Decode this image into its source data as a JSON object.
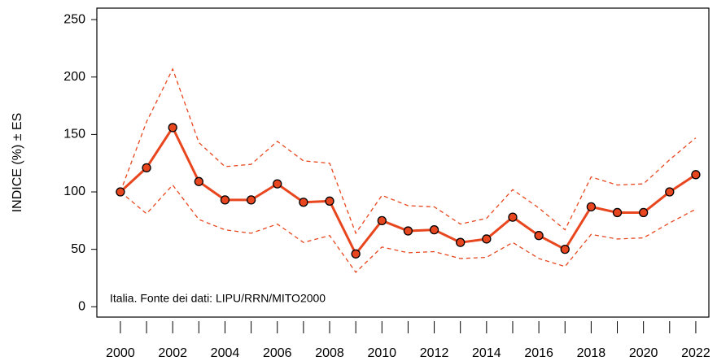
{
  "chart_data": {
    "type": "line",
    "y_label": "INDICE (%) ± ES",
    "annotation": "Italia. Fonte dei dati: LIPU/RRN/MITO2000",
    "x": [
      2000,
      2001,
      2002,
      2003,
      2004,
      2005,
      2006,
      2007,
      2008,
      2009,
      2010,
      2011,
      2012,
      2013,
      2014,
      2015,
      2016,
      2017,
      2018,
      2019,
      2020,
      2021,
      2022
    ],
    "series": [
      {
        "name": "Indice",
        "color": "#e8461e",
        "style": "solid",
        "markers": true,
        "values": [
          100,
          121,
          156,
          109,
          93,
          93,
          107,
          91,
          92,
          46,
          75,
          66,
          67,
          56,
          59,
          78,
          62,
          50,
          87,
          82,
          82,
          100,
          115
        ]
      },
      {
        "name": "+ES",
        "color": "#e8461e",
        "style": "dashed",
        "markers": false,
        "values": [
          100,
          161,
          207,
          143,
          122,
          124,
          144,
          127,
          125,
          64,
          97,
          88,
          87,
          72,
          77,
          102,
          86,
          67,
          113,
          106,
          107,
          128,
          147
        ]
      },
      {
        "name": "-ES",
        "color": "#e8461e",
        "style": "dashed",
        "markers": false,
        "values": [
          100,
          81,
          106,
          76,
          67,
          64,
          72,
          56,
          62,
          30,
          52,
          47,
          48,
          42,
          43,
          56,
          42,
          35,
          63,
          59,
          60,
          73,
          85
        ]
      }
    ],
    "xlim": [
      1999.1,
      2022.5
    ],
    "xticks": [
      2000,
      2002,
      2004,
      2006,
      2008,
      2010,
      2012,
      2014,
      2016,
      2018,
      2020,
      2022
    ],
    "xminorticks": [
      2001,
      2003,
      2005,
      2007,
      2009,
      2011,
      2013,
      2015,
      2017,
      2019,
      2021
    ],
    "ylim": [
      -9,
      260
    ],
    "yticks": [
      0,
      50,
      100,
      150,
      200,
      250
    ]
  }
}
